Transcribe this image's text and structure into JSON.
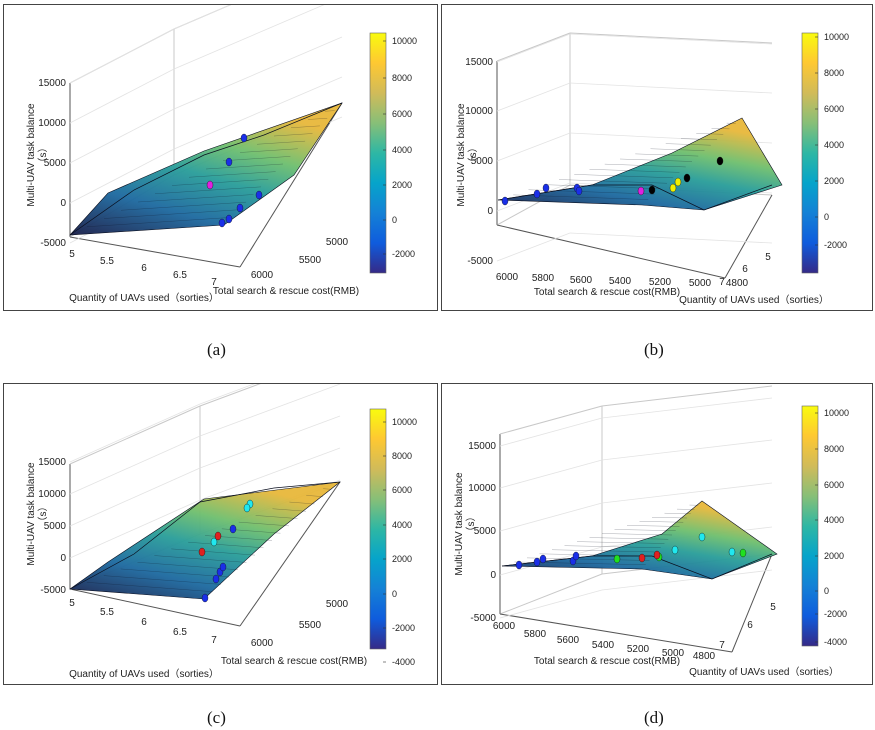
{
  "captions": [
    "(a)",
    "(b)",
    "(c)",
    "(d)"
  ],
  "colormap": [
    "#352a87",
    "#0f5cdd",
    "#1481d6",
    "#06a4ca",
    "#2eb7a4",
    "#87bf77",
    "#d1bb59",
    "#fec832",
    "#f9fb0e"
  ],
  "chart_data": [
    {
      "type": "surface",
      "zlabel": "Multi-UAV task balance\n（s）",
      "xlabel": "Quantity of UAVs used（sorties）",
      "ylabel": "Total search & rescue cost(RMB)",
      "z_ticks": [
        "15000",
        "10000",
        "5000",
        "0",
        "-5000"
      ],
      "x_ticks": [
        "5",
        "5.5",
        "6",
        "6.5",
        "7"
      ],
      "y_ticks": [
        "5000",
        "5500",
        "6000"
      ],
      "colorbar_ticks": [
        "10000",
        "8000",
        "6000",
        "4000",
        "2000",
        "0",
        "-2000"
      ],
      "points": [
        {
          "color": "#1a2fe8",
          "count": 6
        },
        {
          "color": "#e020e0",
          "count": 1
        }
      ]
    },
    {
      "type": "surface",
      "zlabel": "Multi-UAV task balance\n（s）",
      "xlabel": "Total search & rescue cost(RMB)",
      "ylabel": "Quantity of UAVs used（sorties）",
      "z_ticks": [
        "15000",
        "10000",
        "5000",
        "0",
        "-5000"
      ],
      "x_ticks": [
        "6000",
        "5800",
        "5600",
        "5400",
        "5200",
        "5000",
        "4800"
      ],
      "y_ticks": [
        "5",
        "6",
        "7"
      ],
      "colorbar_ticks": [
        "10000",
        "8000",
        "6000",
        "4000",
        "2000",
        "0",
        "-2000"
      ],
      "points": [
        {
          "color": "#1a2fe8",
          "count": 5
        },
        {
          "color": "#f0f000",
          "count": 2
        },
        {
          "color": "#e020e0",
          "count": 1
        },
        {
          "color": "#000000",
          "count": 3
        }
      ]
    },
    {
      "type": "surface",
      "zlabel": "Multi-UAV task balance\n（s）",
      "xlabel": "Quantity of UAVs used（sorties）",
      "ylabel": "Total search & rescue cost(RMB)",
      "z_ticks": [
        "15000",
        "10000",
        "5000",
        "0",
        "-5000"
      ],
      "x_ticks": [
        "5",
        "5.5",
        "6",
        "6.5",
        "7"
      ],
      "y_ticks": [
        "5000",
        "5500",
        "6000"
      ],
      "colorbar_ticks": [
        "10000",
        "8000",
        "6000",
        "4000",
        "2000",
        "0",
        "-2000",
        "-4000"
      ],
      "points": [
        {
          "color": "#1a2fe8",
          "count": 6
        },
        {
          "color": "#20e8ef",
          "count": 3
        },
        {
          "color": "#e02020",
          "count": 2
        }
      ]
    },
    {
      "type": "surface",
      "zlabel": "Multi-UAV task balance\n（s）",
      "xlabel": "Total search & rescue cost(RMB)",
      "ylabel": "Quantity of UAVs used（sorties）",
      "z_ticks": [
        "15000",
        "10000",
        "5000",
        "0",
        "-5000"
      ],
      "x_ticks": [
        "6000",
        "5800",
        "5600",
        "5400",
        "5200",
        "5000",
        "4800"
      ],
      "y_ticks": [
        "5",
        "6",
        "7"
      ],
      "colorbar_ticks": [
        "10000",
        "8000",
        "6000",
        "4000",
        "2000",
        "0",
        "-2000",
        "-4000"
      ],
      "points": [
        {
          "color": "#1a2fe8",
          "count": 5
        },
        {
          "color": "#20e8ef",
          "count": 3
        },
        {
          "color": "#e02020",
          "count": 2
        },
        {
          "color": "#20e020",
          "count": 2
        }
      ]
    }
  ]
}
